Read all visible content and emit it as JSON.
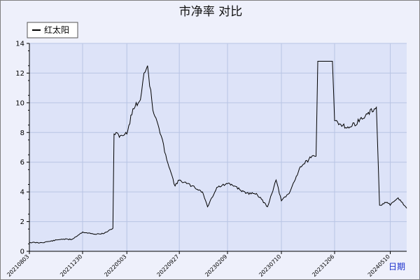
{
  "chart_data": {
    "type": "line",
    "title": "市净率  对比",
    "xlabel": "日期",
    "ylabel": "",
    "ylim": [
      0,
      14
    ],
    "y_ticks": [
      0,
      2,
      4,
      6,
      8,
      10,
      12,
      14
    ],
    "x_tick_labels": [
      "20210803",
      "20211230",
      "20220503",
      "20220927",
      "20230209",
      "20230710",
      "20231206",
      "20240510"
    ],
    "grid": true,
    "legend_position": "top-left",
    "colors": {
      "line": "#000000",
      "plot_bg": "#dde3f8",
      "grid": "#b8c4e4",
      "xlabel": "#1a2fcc"
    },
    "series": [
      {
        "name": "红太阳",
        "points": [
          [
            "20210803",
            0.6
          ],
          [
            "20210901",
            0.57
          ],
          [
            "20211001",
            0.68
          ],
          [
            "20211101",
            0.82
          ],
          [
            "20211130",
            0.8
          ],
          [
            "20211230",
            1.3
          ],
          [
            "20220131",
            1.15
          ],
          [
            "20220228",
            1.2
          ],
          [
            "20220325",
            1.55
          ],
          [
            "20220328",
            7.9
          ],
          [
            "20220415",
            7.8
          ],
          [
            "20220503",
            7.9
          ],
          [
            "20220520",
            9.6
          ],
          [
            "20220610",
            10.2
          ],
          [
            "20220620",
            12.0
          ],
          [
            "20220630",
            12.5
          ],
          [
            "20220715",
            9.5
          ],
          [
            "20220801",
            8.3
          ],
          [
            "20220820",
            6.5
          ],
          [
            "20220901",
            5.5
          ],
          [
            "20220915",
            4.4
          ],
          [
            "20220927",
            4.8
          ],
          [
            "20221101",
            4.4
          ],
          [
            "20221201",
            4.0
          ],
          [
            "20221215",
            3.0
          ],
          [
            "20230110",
            4.3
          ],
          [
            "20230209",
            4.55
          ],
          [
            "20230301",
            4.4
          ],
          [
            "20230401",
            3.9
          ],
          [
            "20230501",
            3.9
          ],
          [
            "20230601",
            3.0
          ],
          [
            "20230625",
            4.8
          ],
          [
            "20230710",
            3.4
          ],
          [
            "20230801",
            3.9
          ],
          [
            "20230901",
            5.7
          ],
          [
            "20231001",
            6.3
          ],
          [
            "20231015",
            6.4
          ],
          [
            "20231020",
            12.8
          ],
          [
            "20231130",
            12.8
          ],
          [
            "20231206",
            8.8
          ],
          [
            "20240115",
            8.3
          ],
          [
            "20240301",
            9.1
          ],
          [
            "20240401",
            9.7
          ],
          [
            "20240410",
            3.1
          ],
          [
            "20240501",
            3.3
          ],
          [
            "20240510",
            3.1
          ],
          [
            "20240601",
            3.6
          ],
          [
            "20240625",
            2.9
          ]
        ]
      }
    ]
  }
}
